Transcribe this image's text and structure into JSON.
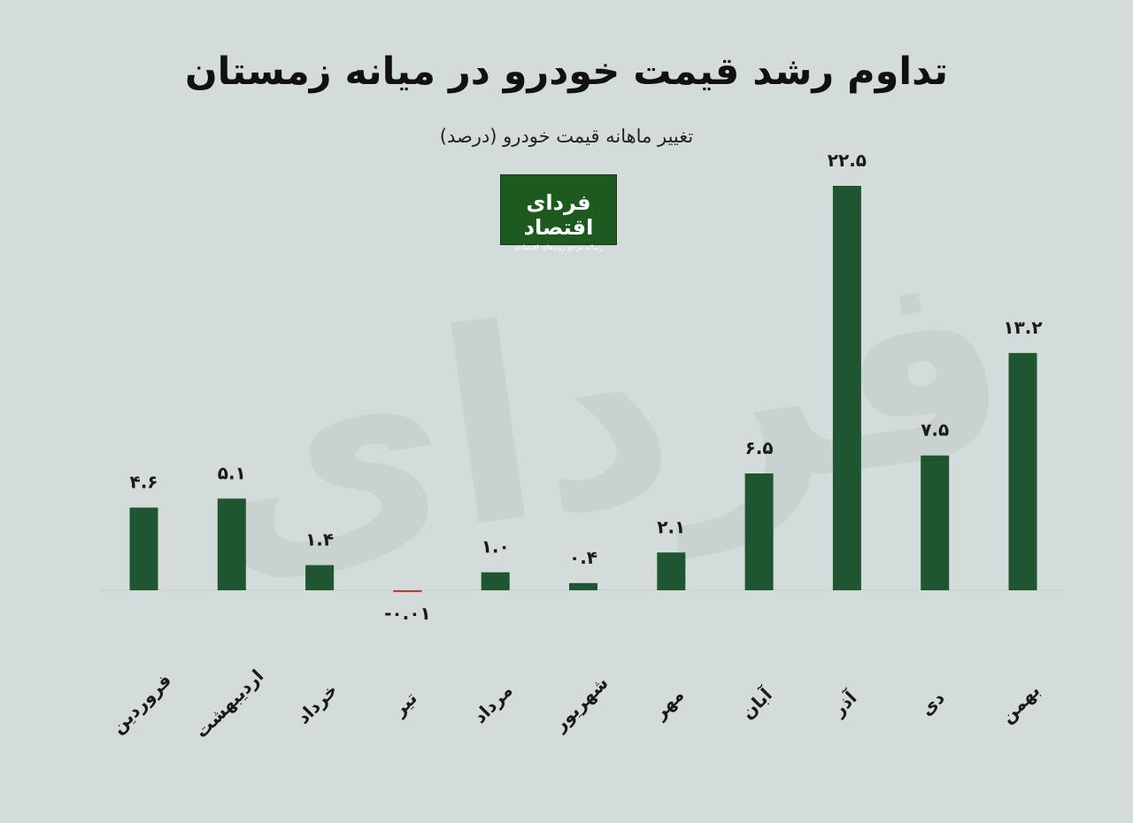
{
  "header": {
    "title": "تداوم رشد قیمت خودرو در میانه زمستان",
    "subtitle": "تغییر ماهانه قیمت خودرو (درصد)"
  },
  "logo": {
    "name": "فردای اقتصاد",
    "tagline": "رسانه مرجع روندهای اقتصادی"
  },
  "colors": {
    "background": "#d3dcda",
    "bar_positive": "#1f5530",
    "bar_negative": "#c0392b",
    "logo_bg": "#1c5a1f"
  },
  "chart_data": {
    "type": "bar",
    "title": "تداوم رشد قیمت خودرو در میانه زمستان",
    "subtitle": "تغییر ماهانه قیمت خودرو (درصد)",
    "categories": [
      "فروردین",
      "اردیبهشت",
      "خرداد",
      "تیر",
      "مرداد",
      "شهریور",
      "مهر",
      "آبان",
      "آذر",
      "دی",
      "بهمن"
    ],
    "values": [
      4.6,
      5.1,
      1.4,
      -0.01,
      1.0,
      0.4,
      2.1,
      6.5,
      22.5,
      7.5,
      13.2
    ],
    "value_labels": [
      "۴.۶",
      "۵.۱",
      "۱.۴",
      "-۰.۰۱",
      "۱.۰",
      "۰.۴",
      "۲.۱",
      "۶.۵",
      "۲۲.۵",
      "۷.۵",
      "۱۳.۲"
    ],
    "xlabel": "",
    "ylabel": "",
    "ylim": [
      -1,
      22.5
    ],
    "grid": false,
    "legend": "none"
  }
}
